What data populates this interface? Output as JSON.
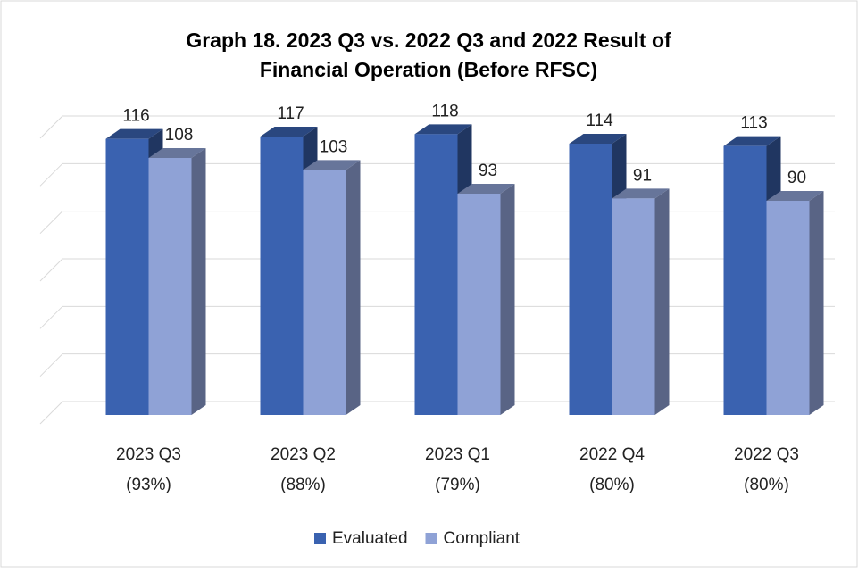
{
  "chart_data": {
    "type": "bar3d",
    "title": [
      "Graph 18. 2023 Q3 vs. 2022 Q3 and 2022 Result of",
      "Financial Operation (Before RFSC)"
    ],
    "categories": [
      [
        "2023 Q3",
        "(93%)"
      ],
      [
        "2023 Q2",
        "(88%)"
      ],
      [
        "2023 Q1",
        "(79%)"
      ],
      [
        "2022 Q4",
        "(80%)"
      ],
      [
        "2022 Q3",
        "(80%)"
      ]
    ],
    "series": [
      {
        "name": "Evaluated",
        "color": "#3a62b0",
        "values": [
          116,
          117,
          118,
          114,
          113
        ]
      },
      {
        "name": "Compliant",
        "color": "#8fa2d6",
        "values": [
          108,
          103,
          93,
          91,
          90
        ]
      }
    ],
    "ylim": [
      0,
      120
    ],
    "yticks": [
      0,
      20,
      40,
      60,
      80,
      100,
      120
    ],
    "grid": true,
    "legend": "bottom"
  }
}
